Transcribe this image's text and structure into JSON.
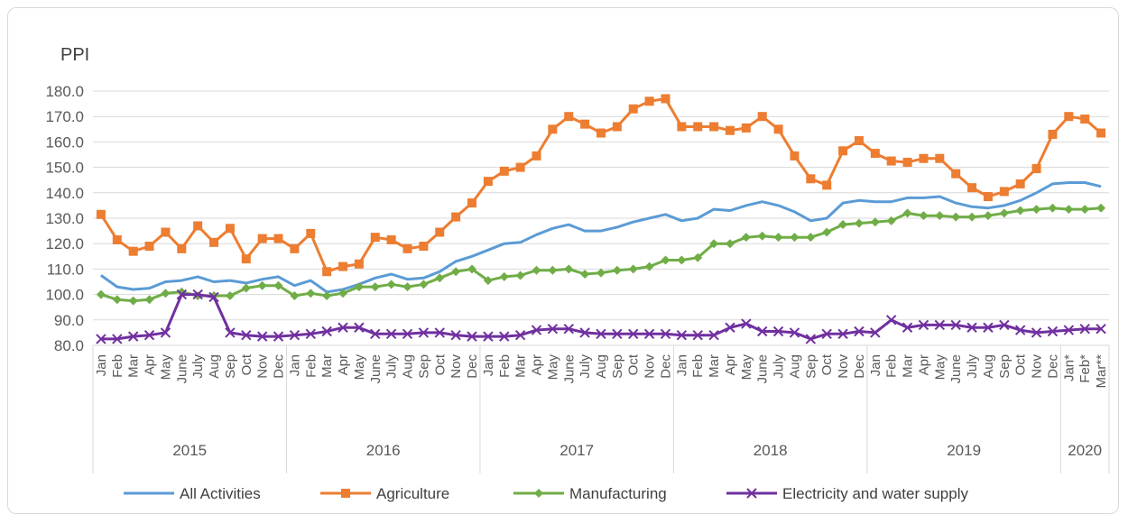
{
  "chart_data": {
    "type": "line",
    "ylabel": "PPI",
    "ylim": [
      80,
      180
    ],
    "yticks": [
      "180.0",
      "170.0",
      "160.0",
      "150.0",
      "140.0",
      "130.0",
      "120.0",
      "110.0",
      "100.0",
      "90.0",
      "80.0"
    ],
    "grid": true,
    "legend_position": "bottom",
    "categories": [
      "Jan",
      "Feb",
      "Mar",
      "Apr",
      "May",
      "June",
      "July",
      "Aug",
      "Sep",
      "Oct",
      "Nov",
      "Dec",
      "Jan",
      "Feb",
      "Mar",
      "Apr",
      "May",
      "June",
      "July",
      "Aug",
      "Sep",
      "Oct",
      "Nov",
      "Dec",
      "Jan",
      "Feb",
      "Mar",
      "Apr",
      "May",
      "June",
      "July",
      "Aug",
      "Sep",
      "Oct",
      "Nov",
      "Dec",
      "Jan",
      "Feb",
      "Mar",
      "Apr",
      "May",
      "June",
      "July",
      "Aug",
      "Sep",
      "Oct",
      "Nov",
      "Dec",
      "Jan",
      "Feb",
      "Mar",
      "Apr",
      "May",
      "June",
      "July",
      "Aug",
      "Sep",
      "Oct",
      "Nov",
      "Dec",
      "Jan*",
      "Feb*",
      "Mar**"
    ],
    "years": [
      {
        "label": "2015",
        "start": 0,
        "end": 11
      },
      {
        "label": "2016",
        "start": 12,
        "end": 23
      },
      {
        "label": "2017",
        "start": 24,
        "end": 35
      },
      {
        "label": "2018",
        "start": 36,
        "end": 47
      },
      {
        "label": "2019",
        "start": 48,
        "end": 59
      },
      {
        "label": "2020",
        "start": 60,
        "end": 62
      }
    ],
    "series": [
      {
        "name": "All Activities",
        "color": "#5b9bd5",
        "marker": "none",
        "values": [
          107.5,
          103,
          102,
          102.5,
          105,
          105.5,
          107,
          105,
          105.5,
          104.5,
          106,
          107,
          103.5,
          105.5,
          101,
          102,
          104,
          106.5,
          108,
          106,
          106.5,
          109,
          113,
          115,
          117.5,
          120,
          120.5,
          123.5,
          126,
          127.5,
          125,
          125,
          126.5,
          128.5,
          130,
          131.5,
          129,
          130,
          133.5,
          133,
          135,
          136.5,
          135,
          132.5,
          129,
          130,
          136,
          137,
          136.5,
          136.5,
          138,
          138,
          138.5,
          136,
          134.5,
          134,
          135,
          137,
          140,
          143.5,
          144,
          144,
          142.5
        ]
      },
      {
        "name": "Agriculture",
        "color": "#ed7d31",
        "marker": "square",
        "values": [
          131.5,
          121.5,
          117,
          119,
          124.5,
          118,
          127,
          120.5,
          126,
          114,
          122,
          122,
          118,
          124,
          109,
          111,
          112,
          122.5,
          121.5,
          118,
          119,
          124.5,
          130.5,
          136,
          144.5,
          148.5,
          150,
          154.5,
          165,
          170,
          167,
          163.5,
          166,
          173,
          176,
          177,
          166,
          166,
          166,
          164.5,
          165.5,
          170,
          165,
          154.5,
          145.5,
          143,
          156.5,
          160.5,
          155.5,
          152.5,
          152,
          153.5,
          153.5,
          147.5,
          142,
          138.5,
          140.5,
          143.5,
          149.5,
          163,
          170,
          169,
          163.5
        ]
      },
      {
        "name": "Manufacturing",
        "color": "#70ad47",
        "marker": "diamond",
        "values": [
          100,
          98,
          97.5,
          98,
          100.5,
          101,
          99.5,
          99.5,
          99.5,
          102.5,
          103.5,
          103.5,
          99.5,
          100.5,
          99.5,
          100.5,
          103,
          103,
          104,
          103,
          104,
          106.5,
          109,
          110,
          105.5,
          107,
          107.5,
          109.5,
          109.5,
          110,
          108,
          108.5,
          109.5,
          110,
          111,
          113.5,
          113.5,
          114.5,
          120,
          120,
          122.5,
          123,
          122.5,
          122.5,
          122.5,
          124.5,
          127.5,
          128,
          128.5,
          129,
          132,
          131,
          131,
          130.5,
          130.5,
          131,
          132,
          133,
          133.5,
          134,
          133.5,
          133.5,
          134
        ]
      },
      {
        "name": "Electricity and water supply",
        "color": "#7030a0",
        "marker": "x",
        "values": [
          82.5,
          82.5,
          83.5,
          84,
          85,
          100,
          100,
          99,
          85,
          84,
          83.5,
          83.5,
          84,
          84.5,
          85.5,
          87,
          87,
          84.5,
          84.5,
          84.5,
          85,
          85,
          84,
          83.5,
          83.5,
          83.5,
          84,
          86,
          86.5,
          86.5,
          85,
          84.5,
          84.5,
          84.5,
          84.5,
          84.5,
          84,
          84,
          84,
          87,
          88.5,
          85.5,
          85.5,
          85,
          82.5,
          84.5,
          84.5,
          85.5,
          85,
          90,
          87,
          88,
          88,
          88,
          87,
          87,
          88,
          86,
          85,
          85.5,
          86,
          86.5,
          86.5
        ]
      }
    ]
  }
}
